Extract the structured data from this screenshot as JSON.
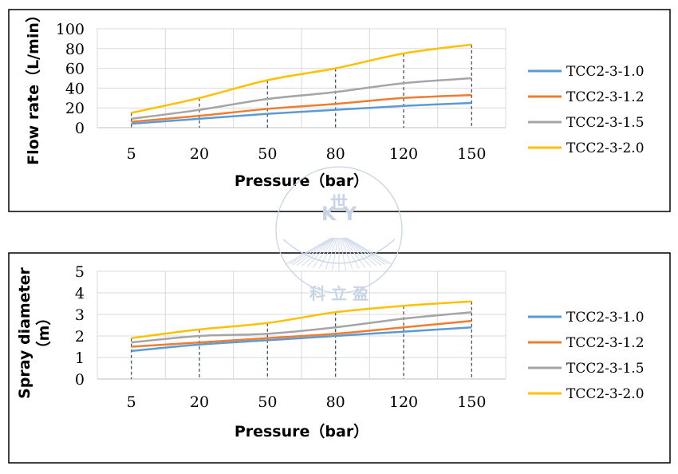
{
  "chart_data": [
    {
      "type": "line",
      "categories": [
        "5",
        "20",
        "50",
        "80",
        "120",
        "150"
      ],
      "xlabel": "Pressure（bar）",
      "ylabel": "Flow rate（L/min）",
      "ylim": [
        0,
        100
      ],
      "yticks": [
        0,
        20,
        40,
        60,
        80,
        100
      ],
      "grid": true,
      "legend_position": "right",
      "series": [
        {
          "name": "TCC2-3-1.0",
          "color": "#5b9bd5",
          "values": [
            4,
            9,
            14,
            18,
            22,
            25
          ]
        },
        {
          "name": "TCC2-3-1.2",
          "color": "#ed7d31",
          "values": [
            6,
            12,
            19,
            24,
            30,
            33
          ]
        },
        {
          "name": "TCC2-3-1.5",
          "color": "#a5a5a5",
          "values": [
            9,
            18,
            29,
            36,
            45,
            50
          ]
        },
        {
          "name": "TCC2-3-2.0",
          "color": "#ffc000",
          "values": [
            15,
            30,
            48,
            60,
            75,
            84
          ]
        }
      ]
    },
    {
      "type": "line",
      "categories": [
        "5",
        "20",
        "50",
        "80",
        "120",
        "150"
      ],
      "xlabel": "Pressure（bar）",
      "ylabel": "Spray diameter（m）",
      "ylim": [
        0,
        5
      ],
      "yticks": [
        0,
        1,
        2,
        3,
        4,
        5
      ],
      "grid": true,
      "legend_position": "right",
      "series": [
        {
          "name": "TCC2-3-1.0",
          "color": "#5b9bd5",
          "values": [
            1.3,
            1.6,
            1.8,
            2.0,
            2.2,
            2.4
          ]
        },
        {
          "name": "TCC2-3-1.2",
          "color": "#ed7d31",
          "values": [
            1.5,
            1.7,
            1.9,
            2.1,
            2.4,
            2.7
          ]
        },
        {
          "name": "TCC2-3-1.5",
          "color": "#a5a5a5",
          "values": [
            1.7,
            2.0,
            2.1,
            2.4,
            2.8,
            3.1
          ]
        },
        {
          "name": "TCC2-3-2.0",
          "color": "#ffc000",
          "values": [
            1.9,
            2.3,
            2.6,
            3.1,
            3.4,
            3.6
          ]
        }
      ]
    }
  ],
  "watermark": {
    "latin": "K  Y",
    "chinese": "科 立 盈",
    "top_glyph": "世"
  }
}
